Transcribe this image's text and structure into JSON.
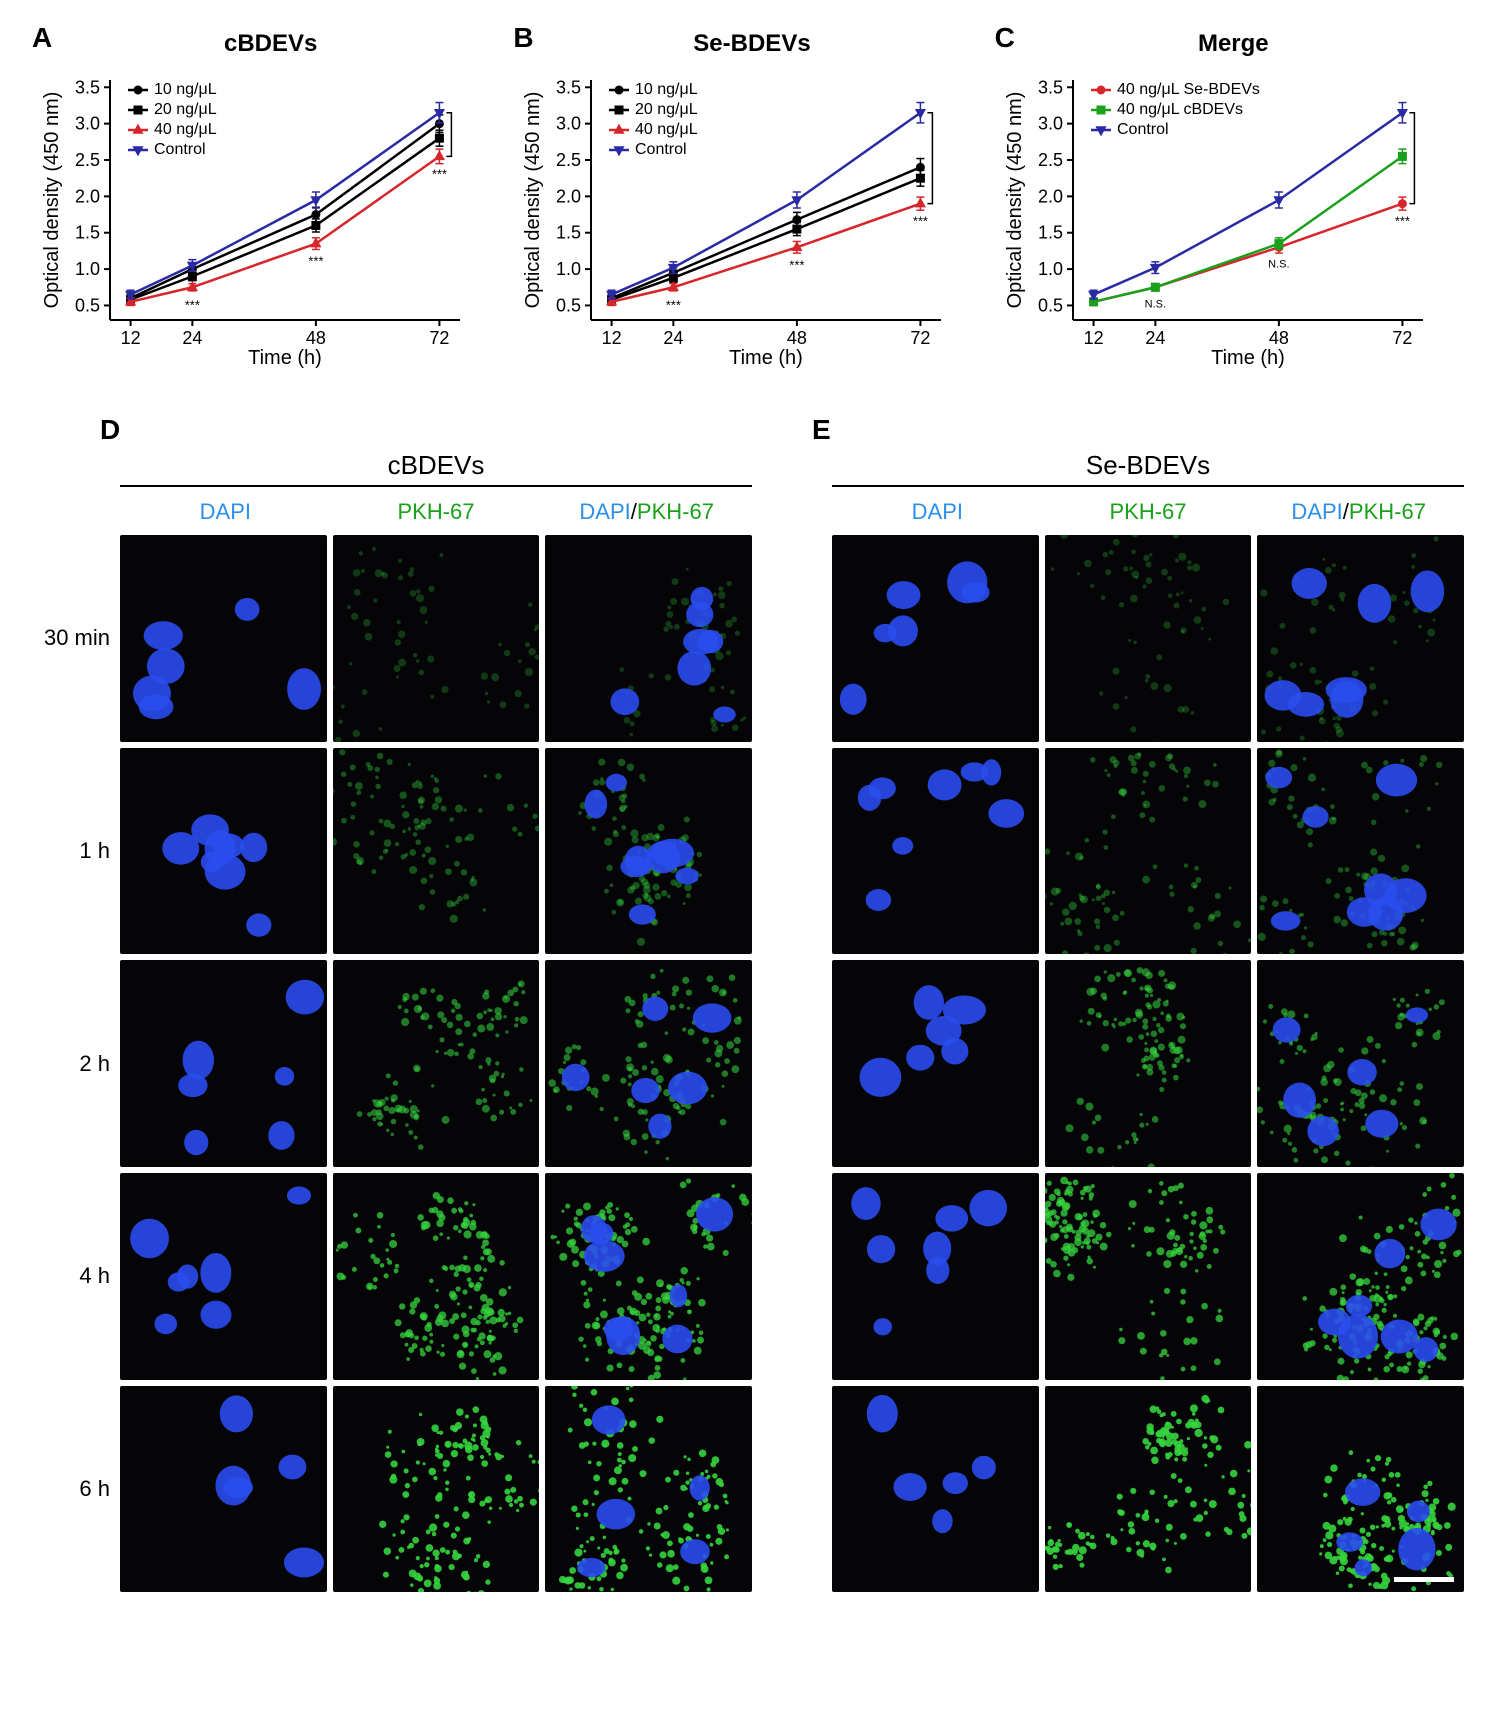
{
  "panels": {
    "A": {
      "letter": "A",
      "title": "cBDEVs"
    },
    "B": {
      "letter": "B",
      "title": "Se-BDEVs"
    },
    "C": {
      "letter": "C",
      "title": "Merge"
    },
    "D": {
      "letter": "D",
      "title": "cBDEVs"
    },
    "E": {
      "letter": "E",
      "title": "Se-BDEVs"
    }
  },
  "chart_common": {
    "xlabel": "Time (h)",
    "ylabel": "Optical density (450 nm)",
    "xticks": [
      12,
      24,
      48,
      72
    ],
    "yticks": [
      0.5,
      1.0,
      1.5,
      2.0,
      2.5,
      3.0,
      3.5
    ],
    "ylim": [
      0.3,
      3.6
    ],
    "xlim": [
      8,
      76
    ],
    "tick_fontsize": 18,
    "label_fontsize": 20,
    "title_fontsize": 24,
    "axis_color": "#000000",
    "axis_width": 2,
    "marker_size": 8,
    "line_width": 2.5,
    "error_cap": 4,
    "bg": "#ffffff",
    "sig_marker": "***",
    "ns_marker": "N.S."
  },
  "chartA": {
    "type": "line",
    "legend_pos": "inside-top-left",
    "series": [
      {
        "name": "10 ng/μL",
        "marker": "circle",
        "color": "#000000",
        "x": [
          12,
          24,
          48,
          72
        ],
        "y": [
          0.6,
          1.0,
          1.75,
          3.0
        ],
        "err": [
          0.05,
          0.07,
          0.1,
          0.12
        ]
      },
      {
        "name": "20 ng/μL",
        "marker": "square",
        "color": "#000000",
        "x": [
          12,
          24,
          48,
          72
        ],
        "y": [
          0.58,
          0.9,
          1.6,
          2.8
        ],
        "err": [
          0.05,
          0.06,
          0.09,
          0.11
        ]
      },
      {
        "name": "40 ng/μL",
        "marker": "triangle-up",
        "color": "#d7262b",
        "x": [
          12,
          24,
          48,
          72
        ],
        "y": [
          0.55,
          0.75,
          1.35,
          2.55
        ],
        "err": [
          0.05,
          0.05,
          0.08,
          0.1
        ]
      },
      {
        "name": "Control",
        "marker": "triangle-down",
        "color": "#2a2aa5",
        "x": [
          12,
          24,
          48,
          72
        ],
        "y": [
          0.65,
          1.05,
          1.95,
          3.15
        ],
        "err": [
          0.06,
          0.08,
          0.11,
          0.14
        ]
      }
    ],
    "sig_at": [
      24,
      48,
      72
    ],
    "bracket72": true
  },
  "chartB": {
    "type": "line",
    "legend_pos": "inside-top-left",
    "series": [
      {
        "name": "10 ng/μL",
        "marker": "circle",
        "color": "#000000",
        "x": [
          12,
          24,
          48,
          72
        ],
        "y": [
          0.6,
          0.95,
          1.68,
          2.4
        ],
        "err": [
          0.05,
          0.07,
          0.1,
          0.12
        ]
      },
      {
        "name": "20 ng/μL",
        "marker": "square",
        "color": "#000000",
        "x": [
          12,
          24,
          48,
          72
        ],
        "y": [
          0.58,
          0.88,
          1.55,
          2.25
        ],
        "err": [
          0.05,
          0.06,
          0.09,
          0.11
        ]
      },
      {
        "name": "40 ng/μL",
        "marker": "triangle-up",
        "color": "#d7262b",
        "x": [
          12,
          24,
          48,
          72
        ],
        "y": [
          0.55,
          0.75,
          1.3,
          1.9
        ],
        "err": [
          0.05,
          0.05,
          0.08,
          0.09
        ]
      },
      {
        "name": "Control",
        "marker": "triangle-down",
        "color": "#2a2aa5",
        "x": [
          12,
          24,
          48,
          72
        ],
        "y": [
          0.65,
          1.02,
          1.95,
          3.15
        ],
        "err": [
          0.06,
          0.08,
          0.11,
          0.14
        ]
      }
    ],
    "sig_at": [
      24,
      48,
      72
    ],
    "bracket72": true
  },
  "chartC": {
    "type": "line",
    "legend_pos": "inside-top-left",
    "series": [
      {
        "name": "40 ng/μL Se-BDEVs",
        "marker": "circle",
        "color": "#d7262b",
        "x": [
          12,
          24,
          48,
          72
        ],
        "y": [
          0.55,
          0.75,
          1.3,
          1.9
        ],
        "err": [
          0.05,
          0.05,
          0.08,
          0.09
        ]
      },
      {
        "name": "40 ng/μL cBDEVs",
        "marker": "square",
        "color": "#1aa01a",
        "x": [
          12,
          24,
          48,
          72
        ],
        "y": [
          0.55,
          0.75,
          1.35,
          2.55
        ],
        "err": [
          0.05,
          0.05,
          0.08,
          0.1
        ]
      },
      {
        "name": "Control",
        "marker": "triangle-down",
        "color": "#2a2aa5",
        "x": [
          12,
          24,
          48,
          72
        ],
        "y": [
          0.65,
          1.02,
          1.95,
          3.15
        ],
        "err": [
          0.06,
          0.08,
          0.11,
          0.14
        ]
      }
    ],
    "ns_at": [
      24,
      48
    ],
    "sig_at": [
      72
    ],
    "bracket72": true
  },
  "micro_columns": [
    {
      "label": "DAPI",
      "color": "#2f8fe8"
    },
    {
      "label": "PKH-67",
      "color": "#1aa01a"
    },
    {
      "label": "DAPI/PKH-67",
      "color_parts": [
        {
          "t": "DAPI",
          "c": "#2f8fe8"
        },
        {
          "t": "/",
          "c": "#000000"
        },
        {
          "t": "PKH-67",
          "c": "#1aa01a"
        }
      ]
    }
  ],
  "micro_rows": [
    "30 min",
    "1 h",
    "2 h",
    "4 h",
    "6 h"
  ],
  "micro_cell_bg": "#050508",
  "dapi_color": "#2a4df0",
  "pkh_color": "#35d43e",
  "scalebar_color": "#ffffff",
  "intensity_by_row": [
    0.15,
    0.3,
    0.55,
    0.8,
    1.0
  ]
}
